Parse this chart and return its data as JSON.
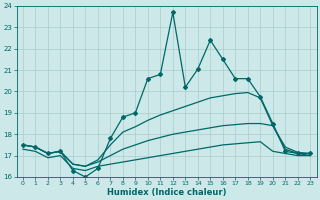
{
  "xlabel": "Humidex (Indice chaleur)",
  "background_color": "#cce8e8",
  "grid_color": "#aacccc",
  "line_color": "#006868",
  "xlim": [
    -0.5,
    23.5
  ],
  "ylim": [
    16,
    24
  ],
  "xticks": [
    0,
    1,
    2,
    3,
    4,
    5,
    6,
    7,
    8,
    9,
    10,
    11,
    12,
    13,
    14,
    15,
    16,
    17,
    18,
    19,
    20,
    21,
    22,
    23
  ],
  "yticks": [
    16,
    17,
    18,
    19,
    20,
    21,
    22,
    23,
    24
  ],
  "line1_x": [
    0,
    1,
    2,
    3,
    4,
    5,
    6,
    7,
    8,
    9,
    10,
    11,
    12,
    13,
    14,
    15,
    16,
    17,
    18,
    19,
    20,
    21,
    22,
    23
  ],
  "line1_y": [
    17.5,
    17.4,
    17.1,
    17.2,
    16.3,
    16.0,
    16.4,
    17.8,
    18.8,
    19.0,
    20.6,
    20.8,
    23.7,
    20.2,
    21.05,
    22.4,
    21.5,
    20.6,
    20.6,
    19.75,
    18.5,
    17.2,
    17.1,
    17.1
  ],
  "line2_x": [
    0,
    1,
    2,
    3,
    4,
    5,
    6,
    7,
    8,
    9,
    10,
    11,
    12,
    13,
    14,
    15,
    16,
    17,
    18,
    19,
    20,
    21,
    22,
    23
  ],
  "line2_y": [
    17.5,
    17.4,
    17.1,
    17.2,
    16.6,
    16.5,
    16.8,
    17.5,
    18.1,
    18.35,
    18.65,
    18.9,
    19.1,
    19.3,
    19.5,
    19.7,
    19.8,
    19.9,
    19.95,
    19.7,
    18.4,
    17.4,
    17.15,
    17.1
  ],
  "line3_x": [
    0,
    1,
    2,
    3,
    4,
    5,
    6,
    7,
    8,
    9,
    10,
    11,
    12,
    13,
    14,
    15,
    16,
    17,
    18,
    19,
    20,
    21,
    22,
    23
  ],
  "line3_y": [
    17.5,
    17.4,
    17.1,
    17.2,
    16.6,
    16.5,
    16.7,
    17.0,
    17.3,
    17.5,
    17.7,
    17.85,
    18.0,
    18.1,
    18.2,
    18.3,
    18.4,
    18.45,
    18.5,
    18.5,
    18.4,
    17.3,
    17.1,
    17.0
  ],
  "line4_x": [
    0,
    1,
    2,
    3,
    4,
    5,
    6,
    7,
    8,
    9,
    10,
    11,
    12,
    13,
    14,
    15,
    16,
    17,
    18,
    19,
    20,
    21,
    22,
    23
  ],
  "line4_y": [
    17.3,
    17.2,
    16.9,
    17.0,
    16.4,
    16.3,
    16.5,
    16.6,
    16.7,
    16.8,
    16.9,
    17.0,
    17.1,
    17.2,
    17.3,
    17.4,
    17.5,
    17.55,
    17.6,
    17.65,
    17.2,
    17.1,
    17.0,
    17.0
  ]
}
